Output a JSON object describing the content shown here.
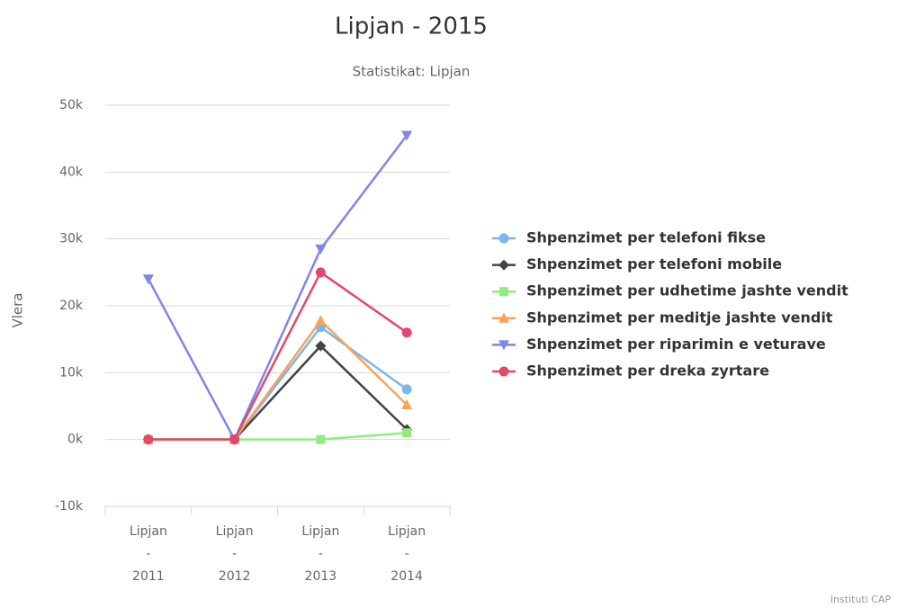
{
  "chart_data": {
    "type": "line",
    "title": "Lipjan - 2015",
    "subtitle": "Statistikat: Lipjan",
    "y_label": "Vlera",
    "credits": "Instituti CAP",
    "categories": [
      "Lipjan - 2011",
      "Lipjan - 2012",
      "Lipjan - 2013",
      "Lipjan - 2014"
    ],
    "ylim": [
      -10000,
      50000
    ],
    "yticks": [
      {
        "value": -10000,
        "label": "-10k"
      },
      {
        "value": 0,
        "label": "0k"
      },
      {
        "value": 10000,
        "label": "10k"
      },
      {
        "value": 20000,
        "label": "20k"
      },
      {
        "value": 30000,
        "label": "30k"
      },
      {
        "value": 40000,
        "label": "40k"
      },
      {
        "value": 50000,
        "label": "50k"
      }
    ],
    "grid": true,
    "legend": "right",
    "series": [
      {
        "name": "Shpenzimet per telefoni fikse",
        "color": "#7cb5ec",
        "marker": "circle",
        "values": [
          0,
          0,
          16800,
          7500
        ]
      },
      {
        "name": "Shpenzimet per telefoni mobile",
        "color": "#434348",
        "marker": "diamond",
        "values": [
          0,
          0,
          14000,
          1500
        ]
      },
      {
        "name": "Shpenzimet per udhetime jashte vendit",
        "color": "#90ed7d",
        "marker": "square",
        "values": [
          0,
          0,
          0,
          1000
        ]
      },
      {
        "name": "Shpenzimet per meditje jashte vendit",
        "color": "#f7a35c",
        "marker": "triangle",
        "values": [
          0,
          0,
          17800,
          5200
        ]
      },
      {
        "name": "Shpenzimet per riparimin e veturave",
        "color": "#8085e9",
        "marker": "triangle-down",
        "values": [
          24000,
          0,
          28500,
          45500
        ]
      },
      {
        "name": "Shpenzimet per dreka zyrtare",
        "color": "#e4476a",
        "marker": "circle",
        "values": [
          0,
          0,
          25000,
          16000
        ]
      }
    ]
  }
}
